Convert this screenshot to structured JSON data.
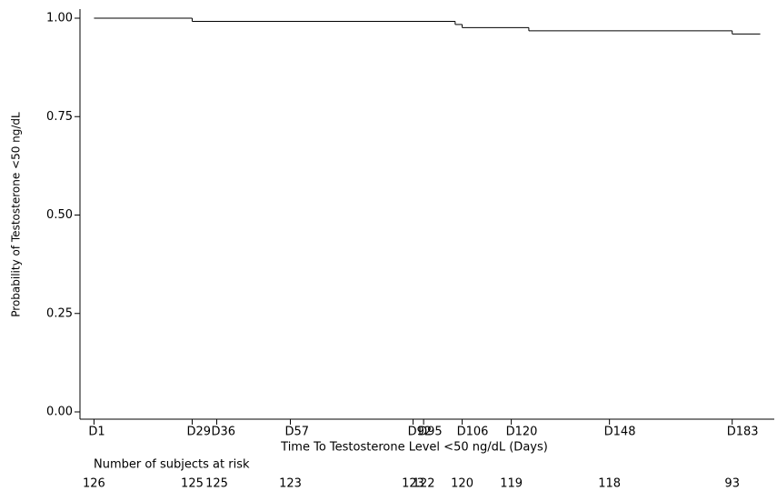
{
  "chart_data": {
    "type": "step",
    "y_label": "Probability of Testosterone <50 ng/dL",
    "x_label": "Time To Testosterone Level <50 ng/dL (Days)",
    "series": [
      {
        "color": "#000000",
        "x": [
          1,
          29,
          104,
          106,
          125,
          183,
          191
        ],
        "values": [
          1.0,
          0.992,
          0.984,
          0.976,
          0.968,
          0.96,
          0.96
        ]
      }
    ],
    "xlim": [
      -3,
      195
    ],
    "ylim": [
      0,
      1
    ],
    "xticks": [
      {
        "value": 1,
        "label": "D1"
      },
      {
        "value": 29,
        "label": "D29"
      },
      {
        "value": 36,
        "label": "D36"
      },
      {
        "value": 57,
        "label": "D57"
      },
      {
        "value": 92,
        "label": "D92"
      },
      {
        "value": 95,
        "label": "D95"
      },
      {
        "value": 106,
        "label": "D106"
      },
      {
        "value": 120,
        "label": "D120"
      },
      {
        "value": 148,
        "label": "D148"
      },
      {
        "value": 183,
        "label": "D183"
      }
    ],
    "yticks": [
      {
        "value": 0,
        "label": "0.00"
      },
      {
        "value": 0.25,
        "label": "0.25"
      },
      {
        "value": 0.5,
        "label": "0.50"
      },
      {
        "value": 0.75,
        "label": "0.75"
      },
      {
        "value": 1,
        "label": "1.00"
      }
    ],
    "at_risk": {
      "title": "Number of subjects at risk",
      "values": [
        126,
        125,
        125,
        123,
        123,
        122,
        120,
        119,
        118,
        93
      ]
    }
  }
}
